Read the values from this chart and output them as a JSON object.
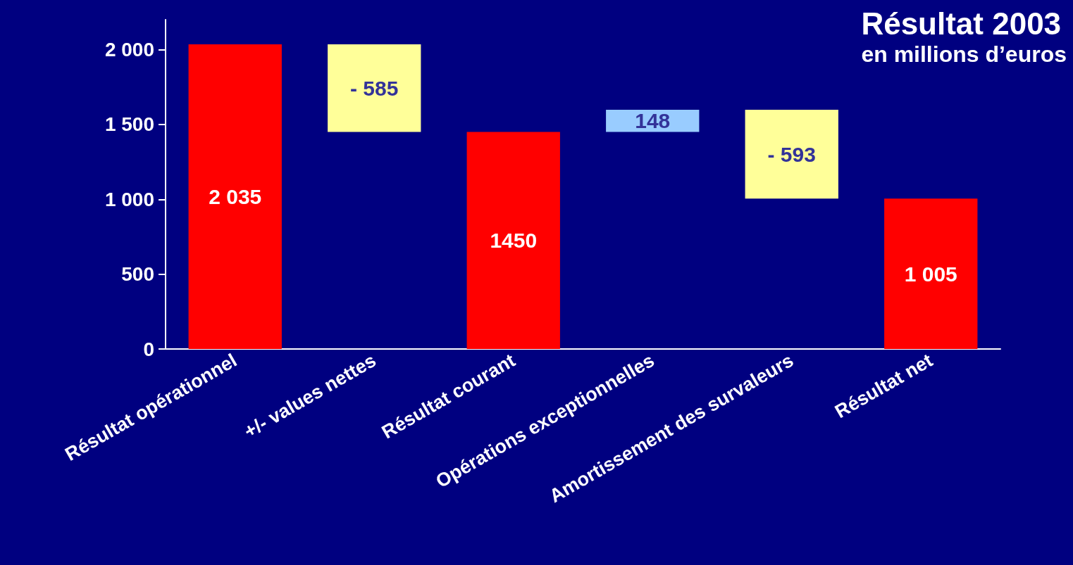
{
  "chart_data": {
    "type": "bar",
    "title": "Résultat 2003",
    "subtitle": "en millions d’euros",
    "categories": [
      "Résultat opérationnel",
      "+/- values nettes",
      "Résultat courant",
      "Opérations exceptionnelles",
      "Amortissement des survaleurs",
      "Résultat net"
    ],
    "values": [
      2035,
      -585,
      1450,
      148,
      -593,
      1005
    ],
    "base": [
      0,
      2035,
      0,
      1450,
      1598,
      0
    ],
    "colors": [
      "#ff0000",
      "#ffff99",
      "#ff0000",
      "#99ccff",
      "#ffff99",
      "#ff0000"
    ],
    "value_labels": [
      "2 035",
      "- 585",
      "1450",
      "148",
      "- 593",
      "1 005"
    ],
    "ylim": [
      0,
      2200
    ],
    "yticks": [
      0,
      500,
      {
        "value": 1000,
        "label": "1 000"
      },
      {
        "value": 1500,
        "label": "1 500"
      },
      {
        "value": 2000,
        "label": "2 000"
      }
    ]
  }
}
